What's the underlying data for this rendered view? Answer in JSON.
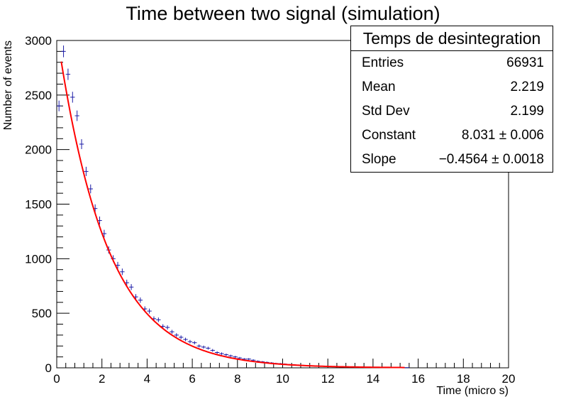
{
  "chart_data": {
    "type": "scatter",
    "title": "Time between two signal (simulation)",
    "xlabel": "Time (micro s)",
    "ylabel": "Number of events",
    "xlim": [
      0,
      20
    ],
    "ylim": [
      0,
      3000
    ],
    "x_ticks": [
      "0",
      "2",
      "4",
      "6",
      "8",
      "10",
      "12",
      "14",
      "16",
      "18",
      "20"
    ],
    "y_ticks": [
      "0",
      "500",
      "1000",
      "1500",
      "2000",
      "2500",
      "3000"
    ],
    "grid": false,
    "series": [
      {
        "kind": "histogram-points",
        "color": "#1a1aa6",
        "bin_width": 0.2,
        "x": [
          0.1,
          0.3,
          0.5,
          0.7,
          0.9,
          1.1,
          1.3,
          1.5,
          1.7,
          1.9,
          2.1,
          2.3,
          2.5,
          2.7,
          2.9,
          3.1,
          3.3,
          3.5,
          3.7,
          3.9,
          4.1,
          4.3,
          4.5,
          4.7,
          4.9,
          5.1,
          5.3,
          5.5,
          5.7,
          5.9,
          6.1,
          6.3,
          6.5,
          6.7,
          6.9,
          7.1,
          7.3,
          7.5,
          7.7,
          7.9,
          8.1,
          8.3,
          8.5,
          8.7,
          8.9,
          9.1,
          9.3,
          9.5,
          9.7,
          9.9,
          10.1,
          10.3,
          10.5,
          10.7,
          10.9,
          11.1,
          11.3,
          11.5,
          11.7,
          11.9,
          12.1,
          12.3,
          12.5,
          12.7,
          12.9,
          13.1,
          13.3,
          13.5,
          13.7,
          13.9,
          14.1,
          14.3,
          14.5,
          14.7,
          14.9,
          15.1,
          15.3,
          15.5
        ],
        "y": [
          2400,
          2900,
          2690,
          2480,
          2310,
          2050,
          1800,
          1640,
          1460,
          1350,
          1230,
          1080,
          1000,
          940,
          880,
          780,
          740,
          650,
          620,
          540,
          520,
          450,
          440,
          380,
          370,
          330,
          300,
          280,
          260,
          240,
          230,
          200,
          190,
          180,
          160,
          140,
          130,
          120,
          110,
          100,
          90,
          80,
          80,
          70,
          60,
          55,
          50,
          45,
          40,
          38,
          34,
          30,
          28,
          25,
          23,
          20,
          18,
          16,
          15,
          13,
          12,
          11,
          10,
          9,
          8,
          7,
          6,
          6,
          5,
          5,
          4,
          4,
          3,
          3,
          3,
          2,
          2,
          2
        ]
      },
      {
        "kind": "fit",
        "color": "#ff0000",
        "name": "",
        "function": "exp(Constant + Slope*x)",
        "constant": 8.031,
        "slope": -0.4564,
        "x_range": [
          0.2,
          15.4
        ]
      }
    ]
  },
  "stats": {
    "title": "Temps de desintegration",
    "rows": [
      {
        "key": "Entries",
        "value": "66931"
      },
      {
        "key": "Mean",
        "value": "2.219"
      },
      {
        "key": "Std Dev",
        "value": "2.199"
      },
      {
        "key": "Constant",
        "value": "8.031 ± 0.006"
      },
      {
        "key": "Slope",
        "value": "−0.4564 ± 0.0018"
      }
    ]
  }
}
